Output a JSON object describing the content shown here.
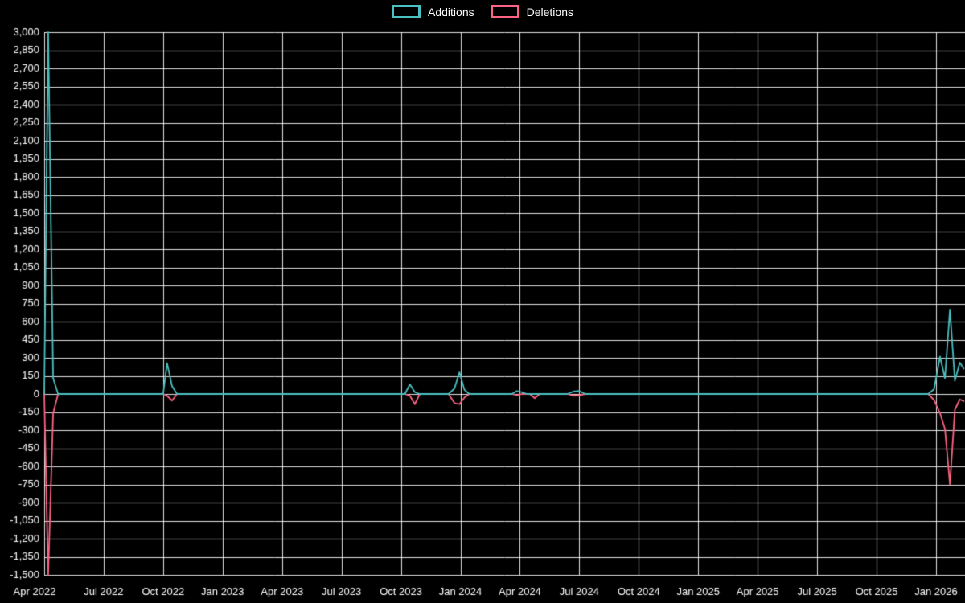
{
  "legend": {
    "items": [
      {
        "label": "Additions",
        "color": "#4bc0c0"
      },
      {
        "label": "Deletions",
        "color": "#ff6384"
      }
    ]
  },
  "chart_data": {
    "type": "line",
    "title": "",
    "xlabel": "",
    "ylabel": "",
    "background": "#000000",
    "grid": true,
    "grid_color": "rgba(255,255,255,0.88)",
    "text_color": "#ffffff",
    "legend_position": "top-center",
    "y_axis": {
      "min": -1500,
      "max": 3000,
      "step": 150,
      "tick_labels": [
        "3,000",
        "2,850",
        "2,700",
        "2,550",
        "2,400",
        "2,250",
        "2,100",
        "1,950",
        "1,800",
        "1,650",
        "1,500",
        "1,350",
        "1,200",
        "1,050",
        "900",
        "750",
        "600",
        "450",
        "300",
        "150",
        "0",
        "-150",
        "-300",
        "-450",
        "-600",
        "-750",
        "-900",
        "-1,050",
        "-1,200",
        "-1,350",
        "-1,500"
      ]
    },
    "x_axis": {
      "unit": "months since Apr 2022",
      "tick_labels": [
        "Apr 2022",
        "Jul 2022",
        "Oct 2022",
        "Jan 2023",
        "Apr 2023",
        "Jul 2023",
        "Oct 2023",
        "Jan 2024",
        "Apr 2024",
        "Jul 2024",
        "Oct 2024",
        "Jan 2025",
        "Apr 2025",
        "Jul 2025",
        "Oct 2025",
        "Jan 2026"
      ],
      "tick_months": [
        0,
        3,
        6,
        9,
        12,
        15,
        18,
        21,
        24,
        27,
        30,
        33,
        36,
        39,
        42,
        45
      ]
    },
    "series": [
      {
        "name": "Additions",
        "color": "#4bc0c0",
        "points": [
          [
            0,
            0
          ],
          [
            0.2,
            3000
          ],
          [
            0.45,
            130
          ],
          [
            0.7,
            0
          ],
          [
            6.0,
            0
          ],
          [
            6.2,
            255
          ],
          [
            6.45,
            65
          ],
          [
            6.7,
            0
          ],
          [
            18.2,
            0
          ],
          [
            18.45,
            80
          ],
          [
            18.7,
            15
          ],
          [
            18.95,
            0
          ],
          [
            20.4,
            0
          ],
          [
            20.7,
            45
          ],
          [
            20.95,
            180
          ],
          [
            21.2,
            35
          ],
          [
            21.45,
            0
          ],
          [
            23.6,
            0
          ],
          [
            23.85,
            25
          ],
          [
            24.1,
            15
          ],
          [
            24.35,
            0
          ],
          [
            26.4,
            0
          ],
          [
            26.7,
            20
          ],
          [
            27.0,
            25
          ],
          [
            27.3,
            0
          ],
          [
            44.6,
            0
          ],
          [
            44.9,
            40
          ],
          [
            45.2,
            310
          ],
          [
            45.45,
            130
          ],
          [
            45.7,
            700
          ],
          [
            45.95,
            110
          ],
          [
            46.2,
            260
          ],
          [
            46.4,
            210
          ]
        ]
      },
      {
        "name": "Deletions",
        "color": "#ff6384",
        "points": [
          [
            0,
            0
          ],
          [
            0.2,
            -1500
          ],
          [
            0.45,
            -160
          ],
          [
            0.7,
            0
          ],
          [
            6.0,
            0
          ],
          [
            6.2,
            -15
          ],
          [
            6.45,
            -55
          ],
          [
            6.7,
            0
          ],
          [
            18.2,
            0
          ],
          [
            18.45,
            -15
          ],
          [
            18.7,
            -85
          ],
          [
            18.95,
            0
          ],
          [
            20.4,
            0
          ],
          [
            20.7,
            -75
          ],
          [
            20.95,
            -85
          ],
          [
            21.2,
            -30
          ],
          [
            21.45,
            0
          ],
          [
            23.6,
            0
          ],
          [
            23.85,
            -10
          ],
          [
            24.1,
            0
          ],
          [
            24.5,
            0
          ],
          [
            24.75,
            -35
          ],
          [
            25.0,
            0
          ],
          [
            26.4,
            0
          ],
          [
            26.7,
            -15
          ],
          [
            27.0,
            -10
          ],
          [
            27.3,
            0
          ],
          [
            44.6,
            0
          ],
          [
            44.9,
            -50
          ],
          [
            45.2,
            -160
          ],
          [
            45.45,
            -290
          ],
          [
            45.7,
            -750
          ],
          [
            45.95,
            -130
          ],
          [
            46.2,
            -45
          ],
          [
            46.4,
            -60
          ]
        ]
      }
    ]
  }
}
